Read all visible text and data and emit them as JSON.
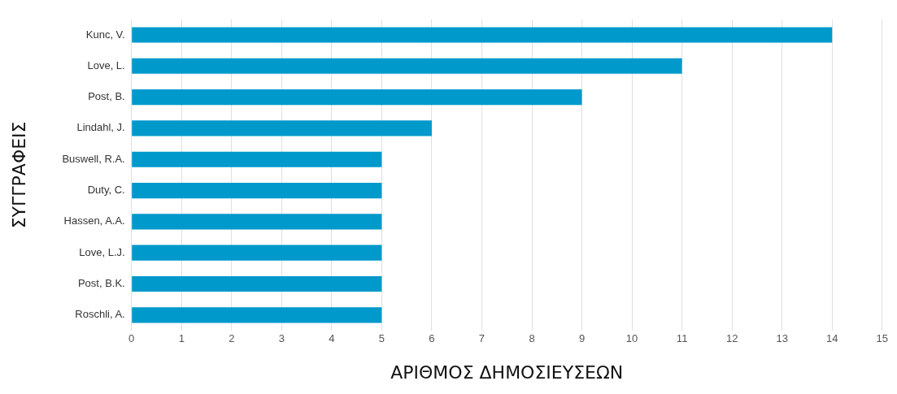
{
  "chart_data": {
    "type": "bar",
    "orientation": "horizontal",
    "xlabel": "ΑΡΙΘΜΟΣ ΔΗΜΟΣΙΕΥΣΕΩΝ",
    "ylabel": "ΣΥΓΓΡΑΦΕΙΣ",
    "categories": [
      "Kunc, V.",
      "Love, L.",
      "Post, B.",
      "Lindahl, J.",
      "Buswell, R.A.",
      "Duty, C.",
      "Hassen, A.A.",
      "Love, L.J.",
      "Post, B.K.",
      "Roschli, A."
    ],
    "values": [
      14,
      11,
      9,
      6,
      5,
      5,
      5,
      5,
      5,
      5
    ],
    "color": "#0099cc",
    "xlim": [
      0,
      15
    ],
    "xticks": [
      0,
      1,
      2,
      3,
      4,
      5,
      6,
      7,
      8,
      9,
      10,
      11,
      12,
      13,
      14,
      15
    ],
    "grid": "x",
    "legend": false
  }
}
